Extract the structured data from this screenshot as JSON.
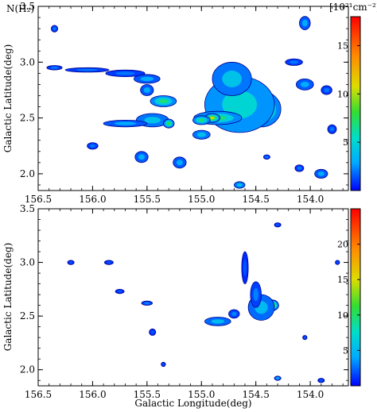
{
  "chart_data": [
    {
      "type": "heatmap",
      "panel": "top",
      "title": "N(H₂)",
      "colorbar_unit": "[10²¹cm⁻²]",
      "ylabel": "Galactic Latitude(deg)",
      "xlabel": "",
      "xlim": [
        156.5,
        153.65
      ],
      "ylim": [
        1.85,
        3.5
      ],
      "xticks": [
        "156.5",
        "156.0",
        "155.5",
        "155.0",
        "154.5",
        "154.0"
      ],
      "yticks": [
        "2.0",
        "2.5",
        "3.0",
        "3.5"
      ],
      "colorbar_range": [
        0,
        18
      ],
      "colorbar_ticks": [
        "5",
        "10",
        "15"
      ],
      "colorbar_tick_values": [
        5,
        10,
        15
      ],
      "clumps": [
        {
          "l": 154.35,
          "b": 2.62,
          "rl": 0.07,
          "rb": 0.06,
          "v": 17
        },
        {
          "l": 154.45,
          "b": 2.58,
          "rl": 0.18,
          "rb": 0.16,
          "v": 9
        },
        {
          "l": 154.65,
          "b": 2.62,
          "rl": 0.32,
          "rb": 0.25,
          "v": 5
        },
        {
          "l": 154.72,
          "b": 2.85,
          "rl": 0.18,
          "rb": 0.15,
          "v": 4
        },
        {
          "l": 154.85,
          "b": 2.5,
          "rl": 0.22,
          "rb": 0.06,
          "v": 7
        },
        {
          "l": 154.9,
          "b": 2.5,
          "rl": 0.07,
          "rb": 0.04,
          "v": 11
        },
        {
          "l": 155.0,
          "b": 2.48,
          "rl": 0.08,
          "rb": 0.04,
          "v": 7
        },
        {
          "l": 155.35,
          "b": 2.65,
          "rl": 0.12,
          "rb": 0.05,
          "v": 7
        },
        {
          "l": 155.5,
          "b": 2.75,
          "rl": 0.06,
          "rb": 0.05,
          "v": 3
        },
        {
          "l": 155.45,
          "b": 2.48,
          "rl": 0.15,
          "rb": 0.06,
          "v": 4
        },
        {
          "l": 155.3,
          "b": 2.45,
          "rl": 0.05,
          "rb": 0.04,
          "v": 8
        },
        {
          "l": 155.7,
          "b": 2.45,
          "rl": 0.2,
          "rb": 0.03,
          "v": 3
        },
        {
          "l": 155.0,
          "b": 2.35,
          "rl": 0.08,
          "rb": 0.04,
          "v": 4
        },
        {
          "l": 156.35,
          "b": 2.95,
          "rl": 0.07,
          "rb": 0.02,
          "v": 2
        },
        {
          "l": 156.05,
          "b": 2.93,
          "rl": 0.2,
          "rb": 0.02,
          "v": 2
        },
        {
          "l": 155.7,
          "b": 2.9,
          "rl": 0.18,
          "rb": 0.03,
          "v": 2
        },
        {
          "l": 155.5,
          "b": 2.85,
          "rl": 0.12,
          "rb": 0.04,
          "v": 3
        },
        {
          "l": 155.55,
          "b": 2.15,
          "rl": 0.06,
          "rb": 0.05,
          "v": 3
        },
        {
          "l": 155.2,
          "b": 2.1,
          "rl": 0.06,
          "rb": 0.05,
          "v": 3
        },
        {
          "l": 156.0,
          "b": 2.25,
          "rl": 0.05,
          "rb": 0.03,
          "v": 2
        },
        {
          "l": 156.35,
          "b": 3.3,
          "rl": 0.03,
          "rb": 0.03,
          "v": 2
        },
        {
          "l": 154.05,
          "b": 3.35,
          "rl": 0.05,
          "rb": 0.06,
          "v": 3
        },
        {
          "l": 154.15,
          "b": 3.0,
          "rl": 0.08,
          "rb": 0.03,
          "v": 2
        },
        {
          "l": 154.05,
          "b": 2.8,
          "rl": 0.08,
          "rb": 0.05,
          "v": 3
        },
        {
          "l": 153.85,
          "b": 2.75,
          "rl": 0.05,
          "rb": 0.04,
          "v": 2
        },
        {
          "l": 153.8,
          "b": 2.4,
          "rl": 0.04,
          "rb": 0.04,
          "v": 2
        },
        {
          "l": 153.9,
          "b": 2.0,
          "rl": 0.06,
          "rb": 0.04,
          "v": 3
        },
        {
          "l": 154.1,
          "b": 2.05,
          "rl": 0.04,
          "rb": 0.03,
          "v": 2
        },
        {
          "l": 154.65,
          "b": 1.9,
          "rl": 0.05,
          "rb": 0.03,
          "v": 4
        },
        {
          "l": 154.4,
          "b": 2.15,
          "rl": 0.03,
          "rb": 0.02,
          "v": 2
        }
      ]
    },
    {
      "type": "heatmap",
      "panel": "bottom",
      "title": "",
      "ylabel": "Galactic Latitude(deg)",
      "xlabel": "Galactic Longitude(deg)",
      "xlim": [
        156.5,
        153.65
      ],
      "ylim": [
        1.85,
        3.5
      ],
      "xticks": [
        "156.5",
        "156.0",
        "155.5",
        "155.0",
        "154.5",
        "154.0"
      ],
      "yticks": [
        "2.0",
        "2.5",
        "3.0",
        "3.5"
      ],
      "colorbar_range": [
        0,
        25
      ],
      "colorbar_ticks": [
        "5",
        "10",
        "15",
        "20"
      ],
      "colorbar_tick_values": [
        5,
        10,
        15,
        20
      ],
      "clumps": [
        {
          "l": 154.35,
          "b": 2.6,
          "rl": 0.06,
          "rb": 0.05,
          "v": 15
        },
        {
          "l": 154.45,
          "b": 2.58,
          "rl": 0.12,
          "rb": 0.12,
          "v": 5
        },
        {
          "l": 154.5,
          "b": 2.7,
          "rl": 0.05,
          "rb": 0.12,
          "v": 3
        },
        {
          "l": 154.85,
          "b": 2.45,
          "rl": 0.12,
          "rb": 0.04,
          "v": 5
        },
        {
          "l": 154.7,
          "b": 2.52,
          "rl": 0.05,
          "rb": 0.04,
          "v": 3
        },
        {
          "l": 154.6,
          "b": 2.95,
          "rl": 0.03,
          "rb": 0.15,
          "v": 2
        },
        {
          "l": 155.5,
          "b": 2.62,
          "rl": 0.05,
          "rb": 0.02,
          "v": 3
        },
        {
          "l": 155.75,
          "b": 2.73,
          "rl": 0.04,
          "rb": 0.02,
          "v": 2
        },
        {
          "l": 155.45,
          "b": 2.35,
          "rl": 0.03,
          "rb": 0.03,
          "v": 2
        },
        {
          "l": 156.2,
          "b": 3.0,
          "rl": 0.03,
          "rb": 0.02,
          "v": 2
        },
        {
          "l": 155.85,
          "b": 3.0,
          "rl": 0.04,
          "rb": 0.02,
          "v": 2
        },
        {
          "l": 154.3,
          "b": 3.35,
          "rl": 0.03,
          "rb": 0.02,
          "v": 2
        },
        {
          "l": 155.35,
          "b": 2.05,
          "rl": 0.02,
          "rb": 0.02,
          "v": 2
        },
        {
          "l": 154.3,
          "b": 1.92,
          "rl": 0.03,
          "rb": 0.02,
          "v": 4
        },
        {
          "l": 153.9,
          "b": 1.9,
          "rl": 0.03,
          "rb": 0.02,
          "v": 2
        },
        {
          "l": 154.05,
          "b": 2.3,
          "rl": 0.02,
          "rb": 0.02,
          "v": 2
        },
        {
          "l": 153.75,
          "b": 3.0,
          "rl": 0.02,
          "rb": 0.02,
          "v": 2
        }
      ]
    }
  ]
}
